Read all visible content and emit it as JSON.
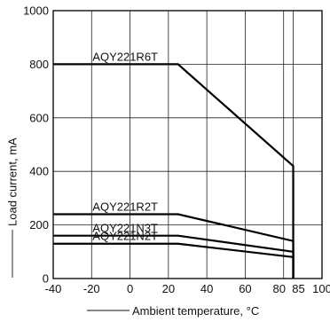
{
  "chart_data": {
    "type": "line",
    "xlabel": "Ambient temperature, °C",
    "ylabel": "Load current, mA",
    "xlim": [
      -40,
      100
    ],
    "ylim": [
      0,
      1000
    ],
    "x_ticks": [
      -40,
      -20,
      0,
      20,
      40,
      60,
      80,
      85,
      100
    ],
    "y_ticks": [
      0,
      200,
      400,
      600,
      800,
      1000
    ],
    "x_tick_labels": [
      "-40",
      "-20",
      "0",
      "20",
      "40",
      "60",
      "80",
      "85",
      "100"
    ],
    "y_tick_labels": [
      "0",
      "200",
      "400",
      "600",
      "800",
      "1000"
    ],
    "grid": true,
    "series": [
      {
        "name": "AQY221R6T",
        "x": [
          -40,
          25,
          85,
          85
        ],
        "y": [
          800,
          800,
          420,
          0
        ]
      },
      {
        "name": "AQY221R2T",
        "x": [
          -40,
          25,
          85,
          85
        ],
        "y": [
          240,
          240,
          140,
          0
        ]
      },
      {
        "name": "AQY221N3T",
        "x": [
          -40,
          25,
          85,
          85
        ],
        "y": [
          160,
          160,
          100,
          0
        ]
      },
      {
        "name": "AQY221N2T",
        "x": [
          -40,
          25,
          85,
          85
        ],
        "y": [
          130,
          130,
          80,
          0
        ]
      }
    ]
  }
}
